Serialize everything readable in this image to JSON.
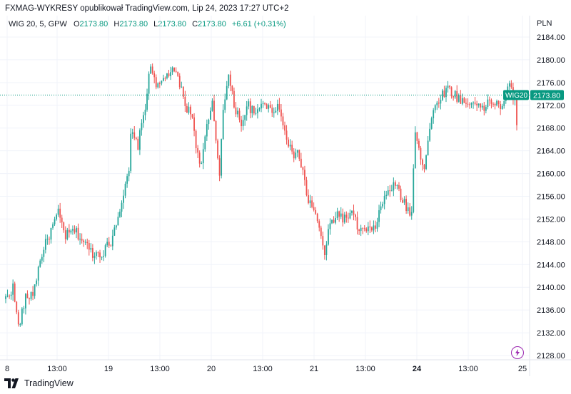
{
  "header": {
    "published_line": "FXMAG-WYKRESY opublikował TradingView.com, Lip 24, 2023 17:27 UTC+2"
  },
  "legend": {
    "symbol": "WIG 20, 5, GPW",
    "o_label": "O",
    "o_value": "2173.80",
    "h_label": "H",
    "h_value": "2173.80",
    "l_label": "L",
    "l_value": "2173.80",
    "c_label": "C",
    "c_value": "2173.80",
    "change": "+6.61 (+0.31%)"
  },
  "footer": {
    "brand": "TradingView"
  },
  "colors": {
    "up": "#26a69a",
    "down": "#ef5350",
    "accent": "#089981",
    "grid": "#f0f3fa"
  },
  "chart_data": {
    "type": "candlestick",
    "title": "WIG 20, 5, GPW",
    "currency": "PLN",
    "ylim": [
      2126,
      2186
    ],
    "y_ticks": [
      2128,
      2132,
      2136,
      2140,
      2144,
      2148,
      2152,
      2156,
      2160,
      2164,
      2168,
      2172,
      2176,
      2180,
      2184
    ],
    "y_tick_labels": [
      "2128.00",
      "2132.00",
      "2136.00",
      "2140.00",
      "2144.00",
      "2148.00",
      "2152.00",
      "2156.00",
      "2160.00",
      "2164.00",
      "2168.00",
      "2172.00",
      "2176.00",
      "2180.00",
      "2184.00"
    ],
    "x_tick_labels": [
      "8",
      "13:00",
      "19",
      "13:00",
      "20",
      "13:00",
      "21",
      "13:00",
      "24",
      "13:00",
      "25"
    ],
    "last_price": 2173.8,
    "last_label": "WIG20",
    "last_value_text": "2173.80",
    "anchors": [
      [
        0,
        2138
      ],
      [
        4,
        2140
      ],
      [
        7,
        2133
      ],
      [
        11,
        2138
      ],
      [
        15,
        2139
      ],
      [
        20,
        2146
      ],
      [
        25,
        2150
      ],
      [
        29,
        2153
      ],
      [
        33,
        2149
      ],
      [
        38,
        2150
      ],
      [
        43,
        2148
      ],
      [
        48,
        2146
      ],
      [
        53,
        2146
      ],
      [
        58,
        2148
      ],
      [
        63,
        2154
      ],
      [
        68,
        2160
      ],
      [
        69,
        2167
      ],
      [
        73,
        2165
      ],
      [
        77,
        2172
      ],
      [
        80,
        2179
      ],
      [
        84,
        2175
      ],
      [
        88,
        2177
      ],
      [
        91,
        2178
      ],
      [
        95,
        2177
      ],
      [
        99,
        2172
      ],
      [
        103,
        2170
      ],
      [
        106,
        2163
      ],
      [
        108,
        2162
      ],
      [
        111,
        2168
      ],
      [
        114,
        2172
      ],
      [
        117,
        2163
      ],
      [
        118,
        2160
      ],
      [
        120,
        2172
      ],
      [
        123,
        2177
      ],
      [
        126,
        2172
      ],
      [
        130,
        2169
      ],
      [
        134,
        2172
      ],
      [
        138,
        2170
      ],
      [
        142,
        2173
      ],
      [
        146,
        2171
      ],
      [
        150,
        2172
      ],
      [
        154,
        2168
      ],
      [
        158,
        2163
      ],
      [
        161,
        2164
      ],
      [
        164,
        2160
      ],
      [
        167,
        2155
      ],
      [
        170,
        2154
      ],
      [
        173,
        2150
      ],
      [
        176,
        2146
      ],
      [
        179,
        2151
      ],
      [
        183,
        2153
      ],
      [
        187,
        2152
      ],
      [
        191,
        2153
      ],
      [
        195,
        2150
      ],
      [
        199,
        2150
      ],
      [
        203,
        2150
      ],
      [
        207,
        2154
      ],
      [
        211,
        2157
      ],
      [
        215,
        2158
      ],
      [
        218,
        2156
      ],
      [
        221,
        2154
      ],
      [
        224,
        2153
      ],
      [
        226,
        2168
      ],
      [
        229,
        2163
      ],
      [
        231,
        2161
      ],
      [
        234,
        2168
      ],
      [
        237,
        2172
      ],
      [
        241,
        2174
      ],
      [
        244,
        2175
      ],
      [
        247,
        2174
      ],
      [
        251,
        2173
      ],
      [
        255,
        2172
      ],
      [
        259,
        2173
      ],
      [
        263,
        2171
      ],
      [
        267,
        2173
      ],
      [
        271,
        2172
      ],
      [
        275,
        2172
      ],
      [
        278,
        2176
      ],
      [
        280,
        2173.8
      ],
      [
        282,
        2168.5
      ]
    ],
    "bar_count": 283
  }
}
